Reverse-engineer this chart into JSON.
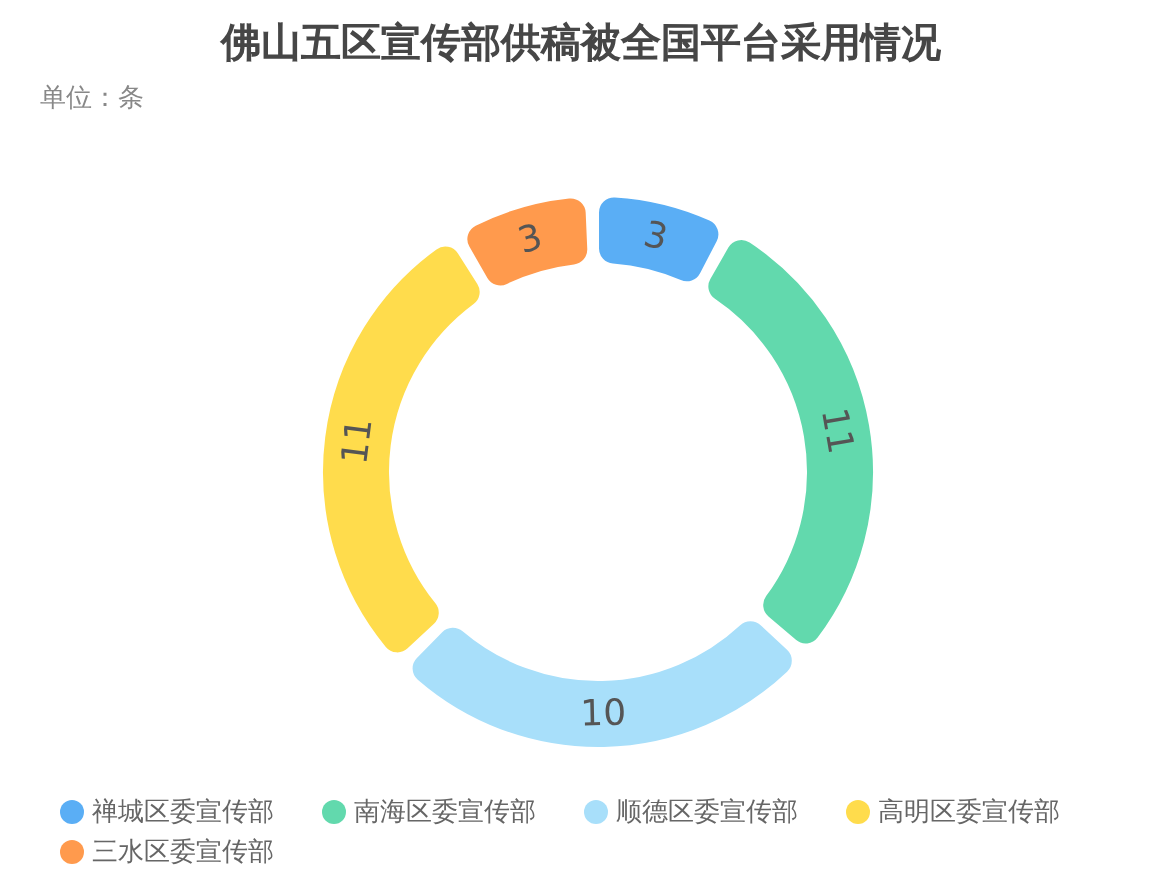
{
  "chart_data": {
    "type": "donut",
    "title": "佛山五区宣传部供稿被全国平台采用情况",
    "subtitle": "单位：条",
    "categories": [
      "禅城区委宣传部",
      "南海区委宣传部",
      "顺德区委宣传部",
      "高明区委宣传部",
      "三水区委宣传部"
    ],
    "values": [
      3,
      11,
      10,
      11,
      3
    ],
    "colors": [
      "#5aaef5",
      "#62d9ad",
      "#a8dffa",
      "#ffdc4c",
      "#ff9a4d"
    ],
    "data_labels": true,
    "legend": "bottom"
  }
}
